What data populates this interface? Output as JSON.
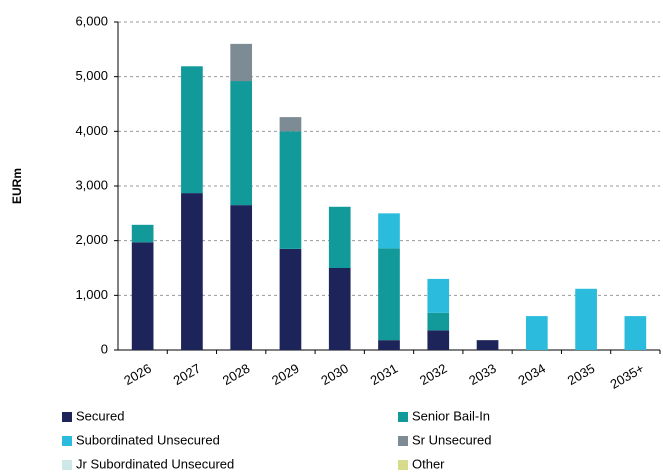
{
  "chart_data": {
    "type": "bar",
    "stacked": true,
    "y_label": "EURm",
    "categories": [
      "2026",
      "2027",
      "2028",
      "2029",
      "2030",
      "2031",
      "2032",
      "2033",
      "2034",
      "2035",
      "2035+"
    ],
    "series": [
      {
        "name": "Secured",
        "color": "#1c2459",
        "values": [
          1970,
          2870,
          2650,
          1850,
          1500,
          180,
          360,
          180,
          0,
          0,
          0
        ]
      },
      {
        "name": "Senior Bail-In",
        "color": "#129a9a",
        "values": [
          320,
          2320,
          2270,
          2150,
          1120,
          1680,
          320,
          0,
          0,
          0,
          0
        ]
      },
      {
        "name": "Subordinated Unsecured",
        "color": "#2bbbdc",
        "values": [
          0,
          0,
          0,
          0,
          0,
          640,
          620,
          0,
          620,
          1120,
          620
        ]
      },
      {
        "name": "Sr Unsecured",
        "color": "#7d8b94",
        "values": [
          0,
          0,
          680,
          260,
          0,
          0,
          0,
          0,
          0,
          0,
          0
        ]
      },
      {
        "name": "Jr Subordinated Unsecured",
        "color": "#cde8e6",
        "values": [
          0,
          0,
          0,
          0,
          0,
          0,
          0,
          0,
          0,
          0,
          0
        ]
      },
      {
        "name": "Other",
        "color": "#d6dc8c",
        "values": [
          0,
          0,
          0,
          0,
          0,
          0,
          0,
          0,
          0,
          0,
          0
        ]
      }
    ],
    "ylim": [
      0,
      6000
    ],
    "yticks": [
      0,
      {
        "value": 1000,
        "label": "1,000"
      },
      {
        "value": 2000,
        "label": "2,000"
      },
      {
        "value": 3000,
        "label": "3,000"
      },
      {
        "value": 4000,
        "label": "4,000"
      },
      {
        "value": 5000,
        "label": "5,000"
      },
      {
        "value": 6000,
        "label": "6,000"
      }
    ],
    "grid": true,
    "legend": "bottom"
  }
}
